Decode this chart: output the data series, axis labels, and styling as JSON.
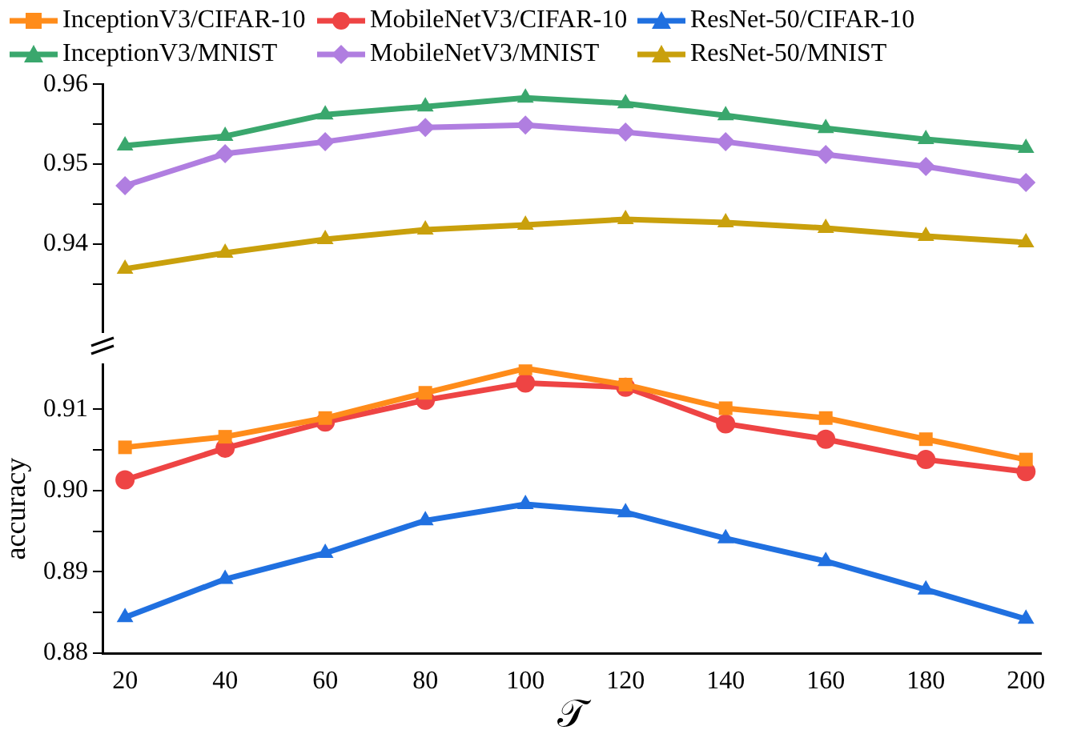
{
  "chart_data": [
    {
      "type": "line",
      "x": [
        20,
        40,
        60,
        80,
        100,
        120,
        140,
        160,
        180,
        200
      ],
      "ylim": [
        0.929,
        0.96
      ],
      "yticks": [
        {
          "value": 0.935,
          "label": null
        },
        0.94,
        {
          "value": 0.945,
          "label": null
        },
        0.95,
        {
          "value": 0.955,
          "label": null
        },
        0.96
      ],
      "tick_labels": "y",
      "legend": "top",
      "grid": false,
      "line_style": "solid",
      "series": [
        {
          "name": "InceptionV3/MNIST",
          "color": "#3aa76d",
          "marker": "triangle",
          "values": [
            0.9523,
            0.9535,
            0.9562,
            0.9572,
            0.9583,
            0.9576,
            0.9561,
            0.9545,
            0.9531,
            0.952
          ]
        },
        {
          "name": "MobileNetV3/MNIST",
          "color": "#b07ee0",
          "marker": "diamond",
          "values": [
            0.9473,
            0.9513,
            0.9528,
            0.9546,
            0.9549,
            0.954,
            0.9528,
            0.9512,
            0.9497,
            0.9477
          ]
        },
        {
          "name": "ResNet-50/MNIST",
          "color": "#c9a00c",
          "marker": "triangle",
          "values": [
            0.9369,
            0.9389,
            0.9406,
            0.9418,
            0.9424,
            0.9431,
            0.9427,
            0.942,
            0.941,
            0.9402
          ]
        }
      ]
    },
    {
      "type": "line",
      "x": [
        20,
        40,
        60,
        80,
        100,
        120,
        140,
        160,
        180,
        200
      ],
      "xlim": [
        15.5,
        203
      ],
      "xticks": [
        20,
        40,
        60,
        80,
        100,
        120,
        140,
        160,
        180,
        200
      ],
      "ylim": [
        0.88,
        0.9155
      ],
      "yticks": [
        0.88,
        {
          "value": 0.885,
          "label": null
        },
        0.89,
        {
          "value": 0.895,
          "label": null
        },
        {
          "value": 0.9,
          "label": "0.90"
        },
        {
          "value": 0.905,
          "label": null
        },
        0.91
      ],
      "xlabel": "𝒯",
      "ylabel": "accuracy",
      "legend": "top",
      "grid": false,
      "line_style": "solid",
      "series": [
        {
          "name": "InceptionV3/CIFAR-10",
          "color": "#ff8c1a",
          "marker": "square",
          "values": [
            0.9053,
            0.9066,
            0.9089,
            0.912,
            0.915,
            0.913,
            0.9101,
            0.9089,
            0.9063,
            0.9038
          ]
        },
        {
          "name": "MobileNetV3/CIFAR-10",
          "color": "#ee4444",
          "marker": "circle",
          "values": [
            0.9013,
            0.9052,
            0.9084,
            0.9111,
            0.9132,
            0.9127,
            0.9082,
            0.9063,
            0.9038,
            0.9023
          ]
        },
        {
          "name": "ResNet-50/CIFAR-10",
          "color": "#2070e0",
          "marker": "triangle",
          "values": [
            0.8844,
            0.8891,
            0.8923,
            0.8963,
            0.8983,
            0.8973,
            0.8941,
            0.8913,
            0.8878,
            0.8842
          ]
        }
      ]
    }
  ]
}
